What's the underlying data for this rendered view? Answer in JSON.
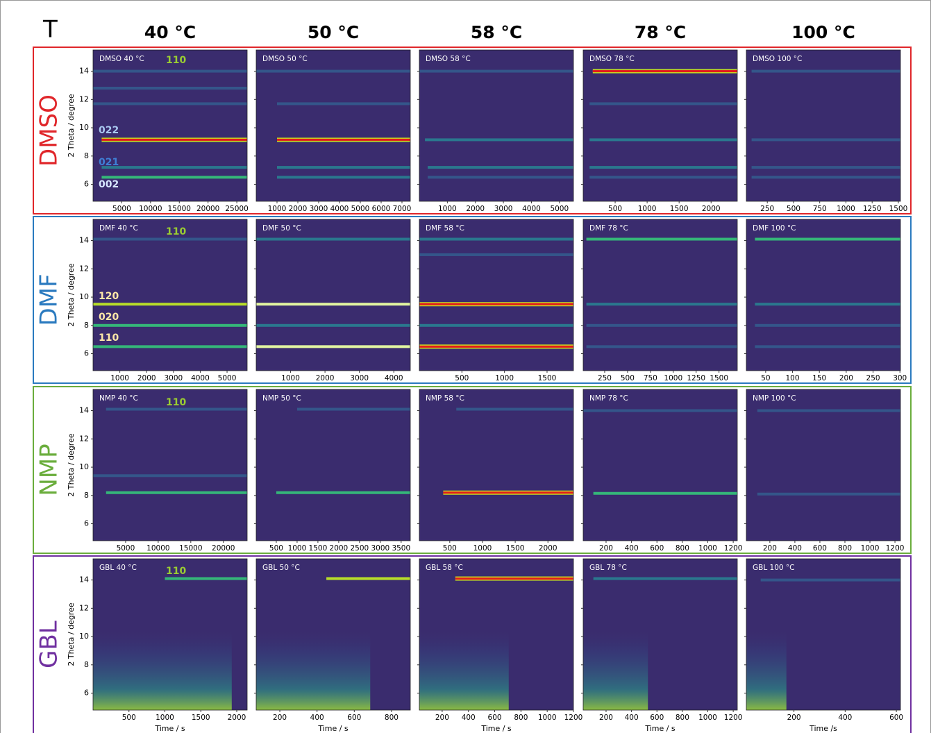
{
  "title": "T",
  "columns": [
    "40 °C",
    "50 °C",
    "58 °C",
    "78 °C",
    "100 °C"
  ],
  "y_label": "2 Theta / degree",
  "ylim": [
    4.8,
    15.5
  ],
  "yticks": [
    6,
    8,
    10,
    12,
    14
  ],
  "x_labels": [
    "Time / s",
    "Time / s",
    "Time / s",
    "Time / s",
    "Time /s"
  ],
  "rows": [
    {
      "label": "DMSO",
      "color": "#e0262a",
      "peaks": [
        {
          "text": "110",
          "color": "#9acd32"
        },
        {
          "text": "022",
          "color": "#a9c8f0"
        },
        {
          "text": "021",
          "color": "#3f7fd6"
        },
        {
          "text": "002",
          "color": "#d6e6ff"
        }
      ],
      "panels": [
        {
          "label": "DMSO 40 °C",
          "xlim": [
            0,
            26800
          ],
          "xticks": [
            5000,
            10000,
            15000,
            20000,
            25000
          ],
          "streaks": [
            {
              "theta": 14,
              "start": 0,
              "color": "#34568a"
            },
            {
              "theta": 12.8,
              "start": 0,
              "color": "#34568a"
            },
            {
              "theta": 11.7,
              "start": 0,
              "color": "#34568a"
            },
            {
              "theta": 9.15,
              "start": 1500,
              "color": "#e31a1c"
            },
            {
              "theta": 7.2,
              "start": 1500,
              "color": "#2a788e"
            },
            {
              "theta": 6.5,
              "start": 1500,
              "color": "#35b779"
            }
          ]
        },
        {
          "label": "DMSO 50 °C",
          "xlim": [
            0,
            7400
          ],
          "xticks": [
            1000,
            2000,
            3000,
            4000,
            5000,
            6000,
            7000
          ],
          "streaks": [
            {
              "theta": 14,
              "start": 0,
              "color": "#34568a"
            },
            {
              "theta": 11.7,
              "start": 1000,
              "color": "#34568a"
            },
            {
              "theta": 9.15,
              "start": 1000,
              "color": "#e31a1c"
            },
            {
              "theta": 7.2,
              "start": 1000,
              "color": "#2a788e"
            },
            {
              "theta": 6.5,
              "start": 1000,
              "color": "#2a788e"
            }
          ]
        },
        {
          "label": "DMSO 58 °C",
          "xlim": [
            0,
            5500
          ],
          "xticks": [
            1000,
            2000,
            3000,
            4000,
            5000
          ],
          "streaks": [
            {
              "theta": 14,
              "start": 0,
              "color": "#34568a"
            },
            {
              "theta": 9.15,
              "start": 200,
              "color": "#2a788e"
            },
            {
              "theta": 7.2,
              "start": 300,
              "color": "#2a788e"
            },
            {
              "theta": 6.5,
              "start": 300,
              "color": "#34568a"
            }
          ]
        },
        {
          "label": "DMSO 78 °C",
          "xlim": [
            0,
            2410
          ],
          "xticks": [
            500,
            1000,
            1500,
            2000
          ],
          "streaks": [
            {
              "theta": 14,
              "start": 150,
              "color": "#e31a1c"
            },
            {
              "theta": 11.7,
              "start": 100,
              "color": "#34568a"
            },
            {
              "theta": 9.15,
              "start": 100,
              "color": "#2a788e"
            },
            {
              "theta": 7.2,
              "start": 100,
              "color": "#2a788e"
            },
            {
              "theta": 6.5,
              "start": 100,
              "color": "#34568a"
            }
          ]
        },
        {
          "label": "DMSO 100 °C",
          "xlim": [
            50,
            1520
          ],
          "xticks": [
            250,
            500,
            750,
            1000,
            1250,
            1500
          ],
          "streaks": [
            {
              "theta": 14,
              "start": 100,
              "color": "#34568a"
            },
            {
              "theta": 9.15,
              "start": 100,
              "color": "#34568a"
            },
            {
              "theta": 7.2,
              "start": 100,
              "color": "#34568a"
            },
            {
              "theta": 6.5,
              "start": 100,
              "color": "#34568a"
            }
          ]
        }
      ]
    },
    {
      "label": "DMF",
      "color": "#2a7abf",
      "peaks": [
        {
          "text": "110",
          "color": "#9acd32"
        },
        {
          "text": "120",
          "color": "#ffe9a8"
        },
        {
          "text": "020",
          "color": "#ffe9a8"
        },
        {
          "text": "110",
          "color": "#ffe9a8"
        }
      ],
      "panels": [
        {
          "label": "DMF 40 °C",
          "xlim": [
            0,
            5750
          ],
          "xticks": [
            1000,
            2000,
            3000,
            4000,
            5000
          ],
          "streaks": [
            {
              "theta": 14.1,
              "start": 0,
              "color": "#34568a"
            },
            {
              "theta": 9.5,
              "start": 0,
              "color": "#b8de29"
            },
            {
              "theta": 8,
              "start": 0,
              "color": "#35b779"
            },
            {
              "theta": 6.5,
              "start": 0,
              "color": "#35b779"
            }
          ]
        },
        {
          "label": "DMF 50 °C",
          "xlim": [
            0,
            4480
          ],
          "xticks": [
            1000,
            2000,
            3000,
            4000
          ],
          "streaks": [
            {
              "theta": 14.1,
              "start": 0,
              "color": "#2a788e"
            },
            {
              "theta": 9.5,
              "start": 0,
              "color": "#e2f5a0"
            },
            {
              "theta": 8,
              "start": 0,
              "color": "#2a788e"
            },
            {
              "theta": 6.5,
              "start": 0,
              "color": "#e2f5a0"
            }
          ]
        },
        {
          "label": "DMF 58 °C",
          "xlim": [
            0,
            1810
          ],
          "xticks": [
            500,
            1000,
            1500
          ],
          "streaks": [
            {
              "theta": 14.1,
              "start": 0,
              "color": "#2a788e"
            },
            {
              "theta": 13,
              "start": 0,
              "color": "#34568a"
            },
            {
              "theta": 9.5,
              "start": 0,
              "color": "#e31a1c"
            },
            {
              "theta": 8,
              "start": 0,
              "color": "#2a788e"
            },
            {
              "theta": 6.5,
              "start": 0,
              "color": "#e31a1c"
            }
          ]
        },
        {
          "label": "DMF 78 °C",
          "xlim": [
            15,
            1700
          ],
          "xticks": [
            250,
            500,
            750,
            1000,
            1250,
            1500
          ],
          "streaks": [
            {
              "theta": 14.1,
              "start": 50,
              "color": "#35b779"
            },
            {
              "theta": 9.5,
              "start": 50,
              "color": "#2a788e"
            },
            {
              "theta": 8,
              "start": 50,
              "color": "#34568a"
            },
            {
              "theta": 6.5,
              "start": 50,
              "color": "#34568a"
            }
          ]
        },
        {
          "label": "DMF 100 °C",
          "xlim": [
            14,
            301
          ],
          "xticks": [
            50,
            100,
            150,
            200,
            250,
            300
          ],
          "streaks": [
            {
              "theta": 14.1,
              "start": 30,
              "color": "#35b779"
            },
            {
              "theta": 9.5,
              "start": 30,
              "color": "#2a788e"
            },
            {
              "theta": 8,
              "start": 30,
              "color": "#34568a"
            },
            {
              "theta": 6.5,
              "start": 30,
              "color": "#34568a"
            }
          ]
        }
      ]
    },
    {
      "label": "NMP",
      "color": "#6aad3c",
      "peaks": [
        {
          "text": "110",
          "color": "#9acd32"
        }
      ],
      "panels": [
        {
          "label": "NMP 40 °C",
          "xlim": [
            0,
            23650
          ],
          "xticks": [
            5000,
            10000,
            15000,
            20000
          ],
          "streaks": [
            {
              "theta": 14.1,
              "start": 2000,
              "color": "#34568a"
            },
            {
              "theta": 9.4,
              "start": 0,
              "color": "#34568a"
            },
            {
              "theta": 8.2,
              "start": 2000,
              "color": "#35b779"
            }
          ]
        },
        {
          "label": "NMP 50 °C",
          "xlim": [
            17,
            3720
          ],
          "xticks": [
            500,
            1000,
            1500,
            2000,
            2500,
            3000,
            3500
          ],
          "streaks": [
            {
              "theta": 14.1,
              "start": 1000,
              "color": "#34568a"
            },
            {
              "theta": 8.2,
              "start": 500,
              "color": "#35b779"
            }
          ]
        },
        {
          "label": "NMP 58 °C",
          "xlim": [
            35,
            2390
          ],
          "xticks": [
            500,
            1000,
            1500,
            2000
          ],
          "streaks": [
            {
              "theta": 14.1,
              "start": 600,
              "color": "#34568a"
            },
            {
              "theta": 8.2,
              "start": 400,
              "color": "#e31a1c"
            }
          ]
        },
        {
          "label": "NMP 78 °C",
          "xlim": [
            20,
            1232
          ],
          "xticks": [
            200,
            400,
            600,
            800,
            1000,
            1200
          ],
          "streaks": [
            {
              "theta": 14,
              "start": 20,
              "color": "#34568a"
            },
            {
              "theta": 8.15,
              "start": 100,
              "color": "#35b779"
            }
          ]
        },
        {
          "label": "NMP 100 °C",
          "xlim": [
            12,
            1244
          ],
          "xticks": [
            200,
            400,
            600,
            800,
            1000,
            1200
          ],
          "streaks": [
            {
              "theta": 14,
              "start": 100,
              "color": "#34568a"
            },
            {
              "theta": 8.1,
              "start": 100,
              "color": "#34568a"
            }
          ]
        }
      ]
    },
    {
      "label": "GBL",
      "color": "#7030a0",
      "peaks": [
        {
          "text": "110",
          "color": "#9acd32"
        }
      ],
      "panels": [
        {
          "label": "GBL 40 °C",
          "xlim": [
            0,
            2145
          ],
          "xticks": [
            500,
            1000,
            1500,
            2000
          ],
          "streaks": [
            {
              "theta": 14.1,
              "start": 1000,
              "color": "#35b779"
            }
          ]
        },
        {
          "label": "GBL 50 °C",
          "xlim": [
            73,
            901
          ],
          "xticks": [
            200,
            400,
            600,
            800
          ],
          "streaks": [
            {
              "theta": 14.1,
              "start": 450,
              "color": "#b8de29"
            }
          ]
        },
        {
          "label": "GBL 58 °C",
          "xlim": [
            26,
            1200
          ],
          "xticks": [
            200,
            400,
            600,
            800,
            1000,
            1200
          ],
          "streaks": [
            {
              "theta": 14.1,
              "start": 300,
              "color": "#e31a1c"
            }
          ]
        },
        {
          "label": "GBL 78 °C",
          "xlim": [
            20,
            1232
          ],
          "xticks": [
            200,
            400,
            600,
            800,
            1000,
            1200
          ],
          "streaks": [
            {
              "theta": 14.1,
              "start": 100,
              "color": "#2a788e"
            }
          ]
        },
        {
          "label": "GBL 100 °C",
          "xlim": [
            14,
            616
          ],
          "xticks": [
            200,
            400,
            600
          ],
          "streaks": [
            {
              "theta": 14,
              "start": 70,
              "color": "#34568a"
            }
          ]
        }
      ]
    }
  ]
}
